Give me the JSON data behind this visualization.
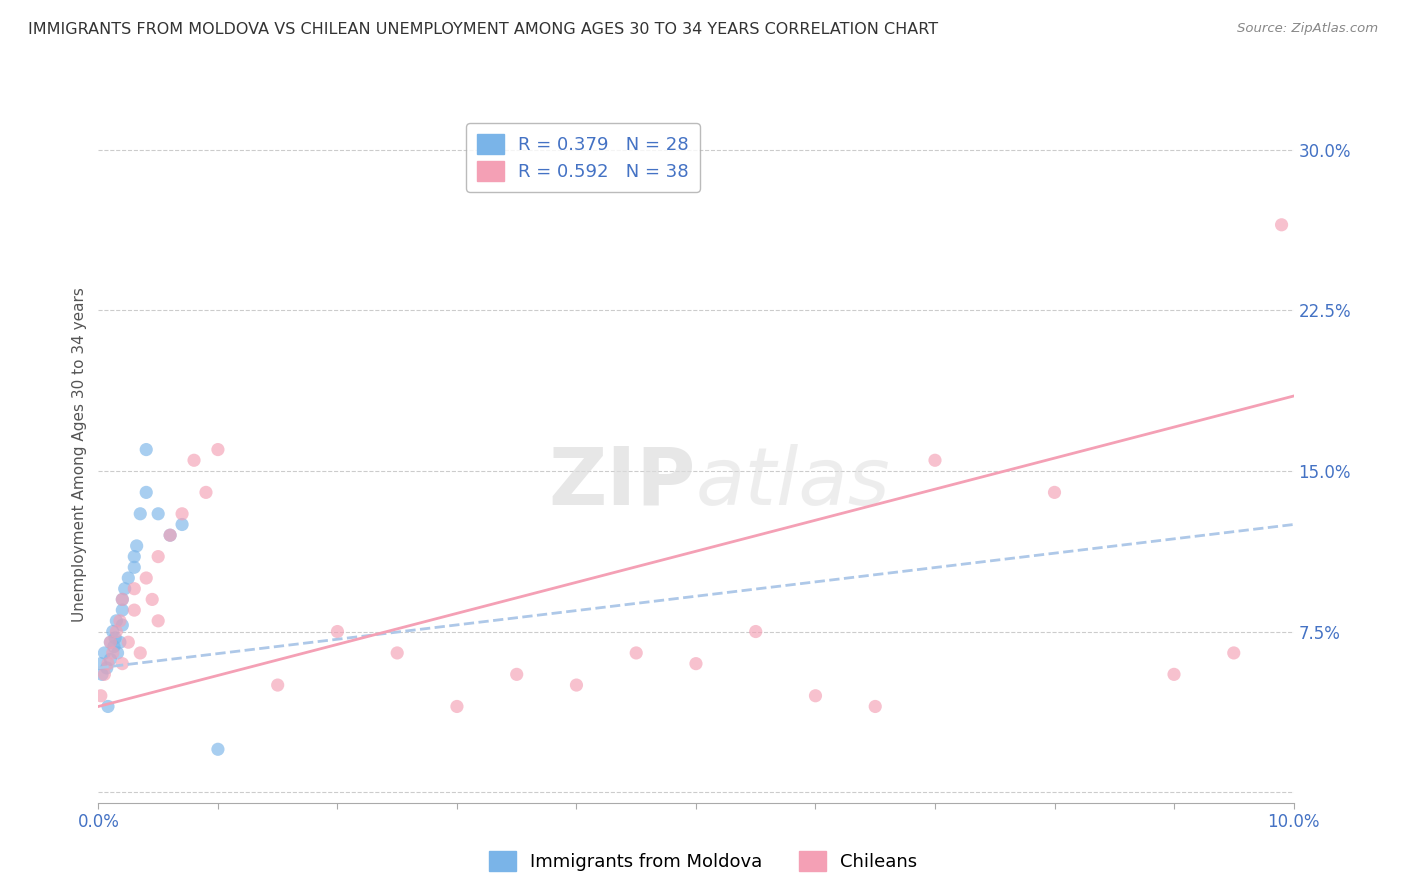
{
  "title": "IMMIGRANTS FROM MOLDOVA VS CHILEAN UNEMPLOYMENT AMONG AGES 30 TO 34 YEARS CORRELATION CHART",
  "source": "Source: ZipAtlas.com",
  "ylabel": "Unemployment Among Ages 30 to 34 years",
  "xlim": [
    0.0,
    0.1
  ],
  "ylim": [
    -0.005,
    0.32
  ],
  "xticks": [
    0.0,
    0.01,
    0.02,
    0.03,
    0.04,
    0.05,
    0.06,
    0.07,
    0.08,
    0.09,
    0.1
  ],
  "xticklabels": [
    "0.0%",
    "",
    "",
    "",
    "",
    "",
    "",
    "",
    "",
    "",
    "10.0%"
  ],
  "yticks_right": [
    0.0,
    0.075,
    0.15,
    0.225,
    0.3
  ],
  "ytick_right_labels": [
    "",
    "7.5%",
    "15.0%",
    "22.5%",
    "30.0%"
  ],
  "legend_r1": "R = 0.379   N = 28",
  "legend_r2": "R = 0.592   N = 38",
  "legend_color1": "#7ab4e8",
  "legend_color2": "#f4a0b5",
  "watermark_zip": "ZIP",
  "watermark_atlas": "atlas",
  "background_color": "#ffffff",
  "grid_color": "#cccccc",
  "blue_scatter_x": [
    0.0002,
    0.0003,
    0.0005,
    0.0007,
    0.0008,
    0.001,
    0.001,
    0.0012,
    0.0013,
    0.0014,
    0.0015,
    0.0016,
    0.0018,
    0.002,
    0.002,
    0.002,
    0.0022,
    0.0025,
    0.003,
    0.003,
    0.0032,
    0.0035,
    0.004,
    0.004,
    0.005,
    0.006,
    0.007,
    0.01
  ],
  "blue_scatter_y": [
    0.06,
    0.055,
    0.065,
    0.058,
    0.04,
    0.07,
    0.062,
    0.075,
    0.068,
    0.072,
    0.08,
    0.065,
    0.07,
    0.085,
    0.09,
    0.078,
    0.095,
    0.1,
    0.11,
    0.105,
    0.115,
    0.13,
    0.16,
    0.14,
    0.13,
    0.12,
    0.125,
    0.02
  ],
  "pink_scatter_x": [
    0.0002,
    0.0005,
    0.0008,
    0.001,
    0.0012,
    0.0015,
    0.0018,
    0.002,
    0.002,
    0.0025,
    0.003,
    0.003,
    0.0035,
    0.004,
    0.0045,
    0.005,
    0.005,
    0.006,
    0.007,
    0.008,
    0.009,
    0.01,
    0.015,
    0.02,
    0.025,
    0.03,
    0.035,
    0.04,
    0.045,
    0.05,
    0.055,
    0.06,
    0.065,
    0.07,
    0.08,
    0.09,
    0.095,
    0.099
  ],
  "pink_scatter_y": [
    0.045,
    0.055,
    0.06,
    0.07,
    0.065,
    0.075,
    0.08,
    0.06,
    0.09,
    0.07,
    0.085,
    0.095,
    0.065,
    0.1,
    0.09,
    0.08,
    0.11,
    0.12,
    0.13,
    0.155,
    0.14,
    0.16,
    0.05,
    0.075,
    0.065,
    0.04,
    0.055,
    0.05,
    0.065,
    0.06,
    0.075,
    0.045,
    0.04,
    0.155,
    0.14,
    0.055,
    0.065,
    0.265
  ],
  "blue_line_x": [
    0.0,
    0.1
  ],
  "blue_line_y": [
    0.058,
    0.125
  ],
  "pink_line_x": [
    0.0,
    0.1
  ],
  "pink_line_y": [
    0.04,
    0.185
  ],
  "scatter_alpha": 0.65,
  "scatter_size": 90,
  "title_fontsize": 11.5,
  "label_fontsize": 11,
  "tick_fontsize": 12,
  "legend_fontsize": 13
}
